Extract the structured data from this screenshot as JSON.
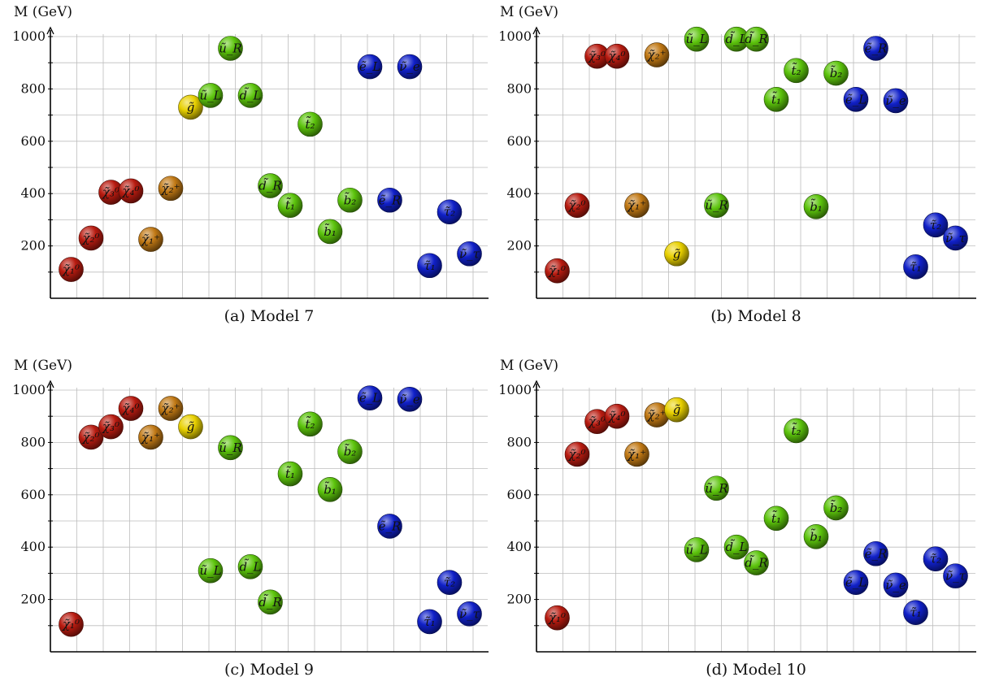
{
  "colors": {
    "neutralino_red": "#b81b10",
    "chargino_orange": "#c07814",
    "gluino_yellow": "#e8d000",
    "squark_green": "#5cc40c",
    "slepton_blue": "#1020c8"
  },
  "chart_data": [
    {
      "type": "scatter",
      "caption": "(a) Model 7",
      "ylabel": "M (GeV)",
      "ylim": [
        0,
        1000
      ],
      "yticks": [
        200,
        400,
        600,
        800,
        1000
      ],
      "grid": true,
      "points": [
        {
          "label": "χ̃₁⁰",
          "slot": 1,
          "y": 110,
          "color": "neutralino_red"
        },
        {
          "label": "χ̃₂⁰",
          "slot": 2,
          "y": 230,
          "color": "neutralino_red"
        },
        {
          "label": "χ̃₃⁰",
          "slot": 3,
          "y": 405,
          "color": "neutralino_red"
        },
        {
          "label": "χ̃₄⁰",
          "slot": 4,
          "y": 410,
          "color": "neutralino_red"
        },
        {
          "label": "χ̃₁⁺",
          "slot": 5,
          "y": 225,
          "color": "chargino_orange"
        },
        {
          "label": "χ̃₂⁺",
          "slot": 6,
          "y": 420,
          "color": "chargino_orange"
        },
        {
          "label": "g̃",
          "slot": 7,
          "y": 730,
          "color": "gluino_yellow"
        },
        {
          "label": "ũ_L",
          "slot": 8,
          "y": 775,
          "color": "squark_green"
        },
        {
          "label": "ũ_R",
          "slot": 9,
          "y": 955,
          "color": "squark_green"
        },
        {
          "label": "d̃_L",
          "slot": 10,
          "y": 775,
          "color": "squark_green"
        },
        {
          "label": "d̃_R",
          "slot": 11,
          "y": 430,
          "color": "squark_green"
        },
        {
          "label": "t̃₁",
          "slot": 12,
          "y": 355,
          "color": "squark_green"
        },
        {
          "label": "t̃₂",
          "slot": 13,
          "y": 665,
          "color": "squark_green"
        },
        {
          "label": "b̃₁",
          "slot": 14,
          "y": 255,
          "color": "squark_green"
        },
        {
          "label": "b̃₂",
          "slot": 15,
          "y": 375,
          "color": "squark_green"
        },
        {
          "label": "ẽ_L",
          "slot": 16,
          "y": 885,
          "color": "slepton_blue"
        },
        {
          "label": "ẽ_R",
          "slot": 17,
          "y": 375,
          "color": "slepton_blue"
        },
        {
          "label": "ν̃_e",
          "slot": 18,
          "y": 885,
          "color": "slepton_blue"
        },
        {
          "label": "τ̃₁",
          "slot": 19,
          "y": 125,
          "color": "slepton_blue"
        },
        {
          "label": "τ̃₂",
          "slot": 20,
          "y": 330,
          "color": "slepton_blue"
        },
        {
          "label": "ν̃_τ",
          "slot": 21,
          "y": 170,
          "color": "slepton_blue"
        }
      ]
    },
    {
      "type": "scatter",
      "caption": "(b) Model 8",
      "ylabel": "M (GeV)",
      "ylim": [
        0,
        1000
      ],
      "yticks": [
        200,
        400,
        600,
        800,
        1000
      ],
      "grid": true,
      "points": [
        {
          "label": "χ̃₁⁰",
          "slot": 1,
          "y": 105,
          "color": "neutralino_red"
        },
        {
          "label": "χ̃₂⁰",
          "slot": 2,
          "y": 355,
          "color": "neutralino_red"
        },
        {
          "label": "χ̃₃⁰",
          "slot": 3,
          "y": 925,
          "color": "neutralino_red"
        },
        {
          "label": "χ̃₄⁰",
          "slot": 4,
          "y": 925,
          "color": "neutralino_red"
        },
        {
          "label": "χ̃₁⁺",
          "slot": 5,
          "y": 355,
          "color": "chargino_orange"
        },
        {
          "label": "χ̃₂⁺",
          "slot": 6,
          "y": 930,
          "color": "chargino_orange"
        },
        {
          "label": "g̃",
          "slot": 7,
          "y": 170,
          "color": "gluino_yellow"
        },
        {
          "label": "ũ_L",
          "slot": 8,
          "y": 990,
          "color": "squark_green"
        },
        {
          "label": "ũ_R",
          "slot": 9,
          "y": 355,
          "color": "squark_green"
        },
        {
          "label": "d̃_L",
          "slot": 10,
          "y": 990,
          "color": "squark_green"
        },
        {
          "label": "d̃_R",
          "slot": 11,
          "y": 990,
          "color": "squark_green"
        },
        {
          "label": "t̃₁",
          "slot": 12,
          "y": 760,
          "color": "squark_green"
        },
        {
          "label": "t̃₂",
          "slot": 13,
          "y": 870,
          "color": "squark_green"
        },
        {
          "label": "b̃₁",
          "slot": 14,
          "y": 350,
          "color": "squark_green"
        },
        {
          "label": "b̃₂",
          "slot": 15,
          "y": 860,
          "color": "squark_green"
        },
        {
          "label": "ẽ_L",
          "slot": 16,
          "y": 760,
          "color": "slepton_blue"
        },
        {
          "label": "ẽ_R",
          "slot": 17,
          "y": 955,
          "color": "slepton_blue"
        },
        {
          "label": "ν̃_e",
          "slot": 18,
          "y": 755,
          "color": "slepton_blue"
        },
        {
          "label": "τ̃₁",
          "slot": 19,
          "y": 120,
          "color": "slepton_blue"
        },
        {
          "label": "τ̃₂",
          "slot": 20,
          "y": 280,
          "color": "slepton_blue"
        },
        {
          "label": "ν̃_τ",
          "slot": 21,
          "y": 230,
          "color": "slepton_blue"
        }
      ]
    },
    {
      "type": "scatter",
      "caption": "(c) Model 9",
      "ylabel": "M (GeV)",
      "ylim": [
        0,
        1000
      ],
      "yticks": [
        200,
        400,
        600,
        800,
        1000
      ],
      "grid": true,
      "points": [
        {
          "label": "χ̃₁⁰",
          "slot": 1,
          "y": 105,
          "color": "neutralino_red"
        },
        {
          "label": "χ̃₂⁰",
          "slot": 2,
          "y": 820,
          "color": "neutralino_red"
        },
        {
          "label": "χ̃₃⁰",
          "slot": 3,
          "y": 860,
          "color": "neutralino_red"
        },
        {
          "label": "χ̃₄⁰",
          "slot": 4,
          "y": 930,
          "color": "neutralino_red"
        },
        {
          "label": "χ̃₁⁺",
          "slot": 5,
          "y": 820,
          "color": "chargino_orange"
        },
        {
          "label": "χ̃₂⁺",
          "slot": 6,
          "y": 930,
          "color": "chargino_orange"
        },
        {
          "label": "g̃",
          "slot": 7,
          "y": 860,
          "color": "gluino_yellow"
        },
        {
          "label": "ũ_L",
          "slot": 8,
          "y": 310,
          "color": "squark_green"
        },
        {
          "label": "ũ_R",
          "slot": 9,
          "y": 780,
          "color": "squark_green"
        },
        {
          "label": "d̃_L",
          "slot": 10,
          "y": 325,
          "color": "squark_green"
        },
        {
          "label": "d̃_R",
          "slot": 11,
          "y": 190,
          "color": "squark_green"
        },
        {
          "label": "t̃₁",
          "slot": 12,
          "y": 680,
          "color": "squark_green"
        },
        {
          "label": "t̃₂",
          "slot": 13,
          "y": 870,
          "color": "squark_green"
        },
        {
          "label": "b̃₁",
          "slot": 14,
          "y": 620,
          "color": "squark_green"
        },
        {
          "label": "b̃₂",
          "slot": 15,
          "y": 765,
          "color": "squark_green"
        },
        {
          "label": "ẽ_L",
          "slot": 16,
          "y": 970,
          "color": "slepton_blue"
        },
        {
          "label": "ẽ_R",
          "slot": 17,
          "y": 480,
          "color": "slepton_blue"
        },
        {
          "label": "ν̃_e",
          "slot": 18,
          "y": 965,
          "color": "slepton_blue"
        },
        {
          "label": "τ̃₁",
          "slot": 19,
          "y": 115,
          "color": "slepton_blue"
        },
        {
          "label": "τ̃₂",
          "slot": 20,
          "y": 265,
          "color": "slepton_blue"
        },
        {
          "label": "ν̃_τ",
          "slot": 21,
          "y": 145,
          "color": "slepton_blue"
        }
      ]
    },
    {
      "type": "scatter",
      "caption": "(d) Model 10",
      "ylabel": "M (GeV)",
      "ylim": [
        0,
        1000
      ],
      "yticks": [
        200,
        400,
        600,
        800,
        1000
      ],
      "grid": true,
      "points": [
        {
          "label": "χ̃₁⁰",
          "slot": 1,
          "y": 130,
          "color": "neutralino_red"
        },
        {
          "label": "χ̃₂⁰",
          "slot": 2,
          "y": 755,
          "color": "neutralino_red"
        },
        {
          "label": "χ̃₃⁰",
          "slot": 3,
          "y": 880,
          "color": "neutralino_red"
        },
        {
          "label": "χ̃₄⁰",
          "slot": 4,
          "y": 900,
          "color": "neutralino_red"
        },
        {
          "label": "χ̃₁⁺",
          "slot": 5,
          "y": 755,
          "color": "chargino_orange"
        },
        {
          "label": "χ̃₂⁺",
          "slot": 6,
          "y": 905,
          "color": "chargino_orange"
        },
        {
          "label": "g̃",
          "slot": 7,
          "y": 925,
          "color": "gluino_yellow"
        },
        {
          "label": "ũ_L",
          "slot": 8,
          "y": 390,
          "color": "squark_green"
        },
        {
          "label": "ũ_R",
          "slot": 9,
          "y": 625,
          "color": "squark_green"
        },
        {
          "label": "d̃_L",
          "slot": 10,
          "y": 400,
          "color": "squark_green"
        },
        {
          "label": "d̃_R",
          "slot": 11,
          "y": 340,
          "color": "squark_green"
        },
        {
          "label": "t̃₁",
          "slot": 12,
          "y": 510,
          "color": "squark_green"
        },
        {
          "label": "t̃₂",
          "slot": 13,
          "y": 845,
          "color": "squark_green"
        },
        {
          "label": "b̃₁",
          "slot": 14,
          "y": 440,
          "color": "squark_green"
        },
        {
          "label": "b̃₂",
          "slot": 15,
          "y": 550,
          "color": "squark_green"
        },
        {
          "label": "ẽ_L",
          "slot": 16,
          "y": 265,
          "color": "slepton_blue"
        },
        {
          "label": "ẽ_R",
          "slot": 17,
          "y": 375,
          "color": "slepton_blue"
        },
        {
          "label": "ν̃_e",
          "slot": 18,
          "y": 255,
          "color": "slepton_blue"
        },
        {
          "label": "τ̃₁",
          "slot": 19,
          "y": 150,
          "color": "slepton_blue"
        },
        {
          "label": "τ̃₂",
          "slot": 20,
          "y": 355,
          "color": "slepton_blue"
        },
        {
          "label": "ν̃_τ",
          "slot": 21,
          "y": 290,
          "color": "slepton_blue"
        }
      ]
    }
  ]
}
